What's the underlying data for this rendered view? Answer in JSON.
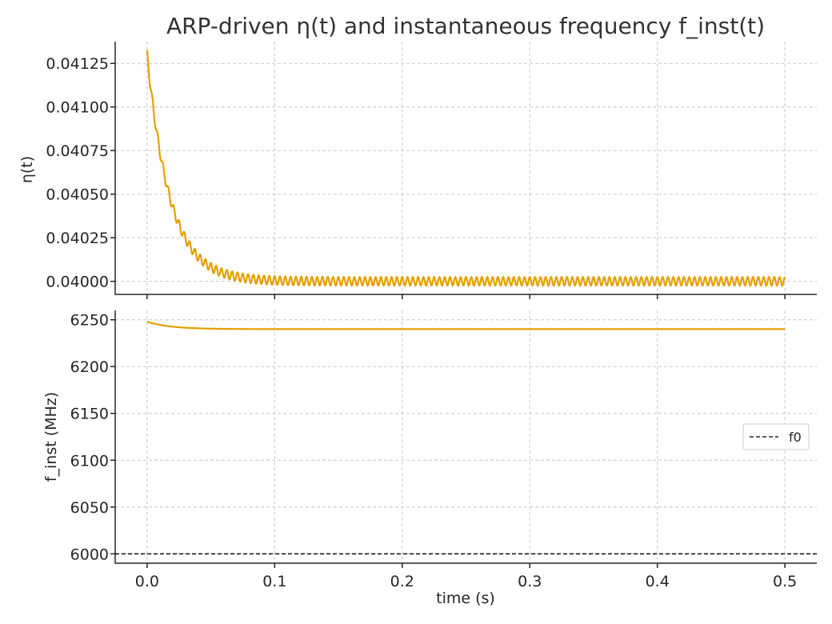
{
  "chart_data": [
    {
      "type": "line",
      "title": "ARP-driven η(t) and instantaneous frequency f_inst(t)",
      "xlabel": "",
      "ylabel": "η(t)",
      "xlim": [
        -0.025,
        0.525
      ],
      "ylim": [
        0.039925,
        0.041375
      ],
      "xticks": [
        0.0,
        0.1,
        0.2,
        0.3,
        0.4,
        0.5
      ],
      "yticks": [
        0.04,
        0.04025,
        0.0405,
        0.04075,
        0.041,
        0.04125
      ],
      "ytick_labels": [
        "0.04000",
        "0.04025",
        "0.04050",
        "0.04075",
        "0.04100",
        "0.04125"
      ],
      "grid": true,
      "color": "#e69f00",
      "series": [
        {
          "baseline": 0.04,
          "initial_offset": 0.0013,
          "decay_tau_s": 0.018,
          "oscillation_amplitude": 2.5e-05,
          "oscillation_frequency_hz": 240,
          "x_range": [
            0.0,
            0.5
          ]
        }
      ]
    },
    {
      "type": "line",
      "title": "",
      "xlabel": "time (s)",
      "ylabel": "f_inst (MHz)",
      "xlim": [
        -0.025,
        0.525
      ],
      "ylim": [
        5990,
        6260
      ],
      "xticks": [
        0.0,
        0.1,
        0.2,
        0.3,
        0.4,
        0.5
      ],
      "xtick_labels": [
        "0.0",
        "0.1",
        "0.2",
        "0.3",
        "0.4",
        "0.5"
      ],
      "yticks": [
        6000,
        6050,
        6100,
        6150,
        6200,
        6250
      ],
      "ytick_labels": [
        "6000",
        "6050",
        "6100",
        "6150",
        "6200",
        "6250"
      ],
      "grid": true,
      "color": "#e69f00",
      "series": [
        {
          "start_value": 6248,
          "end_value": 6240,
          "decay_tau_s": 0.018,
          "x_range": [
            0.0,
            0.5
          ]
        }
      ],
      "reference_line": {
        "name": "f0",
        "value": 6000,
        "style": "dashed",
        "color": "#000000"
      },
      "legend": {
        "position": "right",
        "entries": [
          "f0"
        ]
      }
    }
  ]
}
